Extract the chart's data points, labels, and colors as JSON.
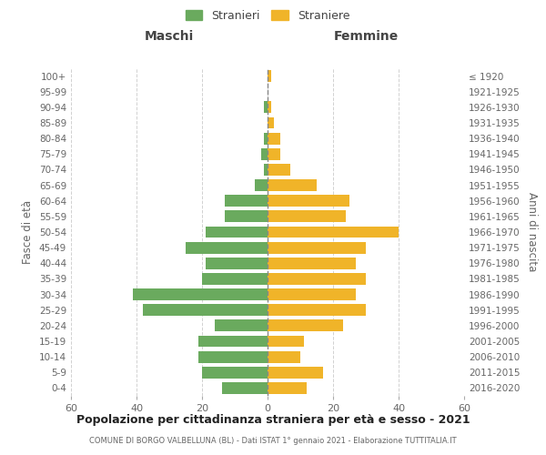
{
  "age_groups": [
    "0-4",
    "5-9",
    "10-14",
    "15-19",
    "20-24",
    "25-29",
    "30-34",
    "35-39",
    "40-44",
    "45-49",
    "50-54",
    "55-59",
    "60-64",
    "65-69",
    "70-74",
    "75-79",
    "80-84",
    "85-89",
    "90-94",
    "95-99",
    "100+"
  ],
  "birth_years": [
    "2016-2020",
    "2011-2015",
    "2006-2010",
    "2001-2005",
    "1996-2000",
    "1991-1995",
    "1986-1990",
    "1981-1985",
    "1976-1980",
    "1971-1975",
    "1966-1970",
    "1961-1965",
    "1956-1960",
    "1951-1955",
    "1946-1950",
    "1941-1945",
    "1936-1940",
    "1931-1935",
    "1926-1930",
    "1921-1925",
    "≤ 1920"
  ],
  "maschi": [
    14,
    20,
    21,
    21,
    16,
    38,
    41,
    20,
    19,
    25,
    19,
    13,
    13,
    4,
    1,
    2,
    1,
    0,
    1,
    0,
    0
  ],
  "femmine": [
    12,
    17,
    10,
    11,
    23,
    30,
    27,
    30,
    27,
    30,
    40,
    24,
    25,
    15,
    7,
    4,
    4,
    2,
    1,
    0,
    1
  ],
  "maschi_color": "#6aaa5e",
  "femmine_color": "#f0b429",
  "title": "Popolazione per cittadinanza straniera per età e sesso - 2021",
  "subtitle": "COMUNE DI BORGO VALBELLUNA (BL) - Dati ISTAT 1° gennaio 2021 - Elaborazione TUTTITALIA.IT",
  "xlabel_left": "Maschi",
  "xlabel_right": "Femmine",
  "ylabel_left": "Fasce di età",
  "ylabel_right": "Anni di nascita",
  "legend_stranieri": "Stranieri",
  "legend_straniere": "Straniere",
  "xlim": 60,
  "background_color": "#ffffff",
  "grid_color": "#cccccc"
}
